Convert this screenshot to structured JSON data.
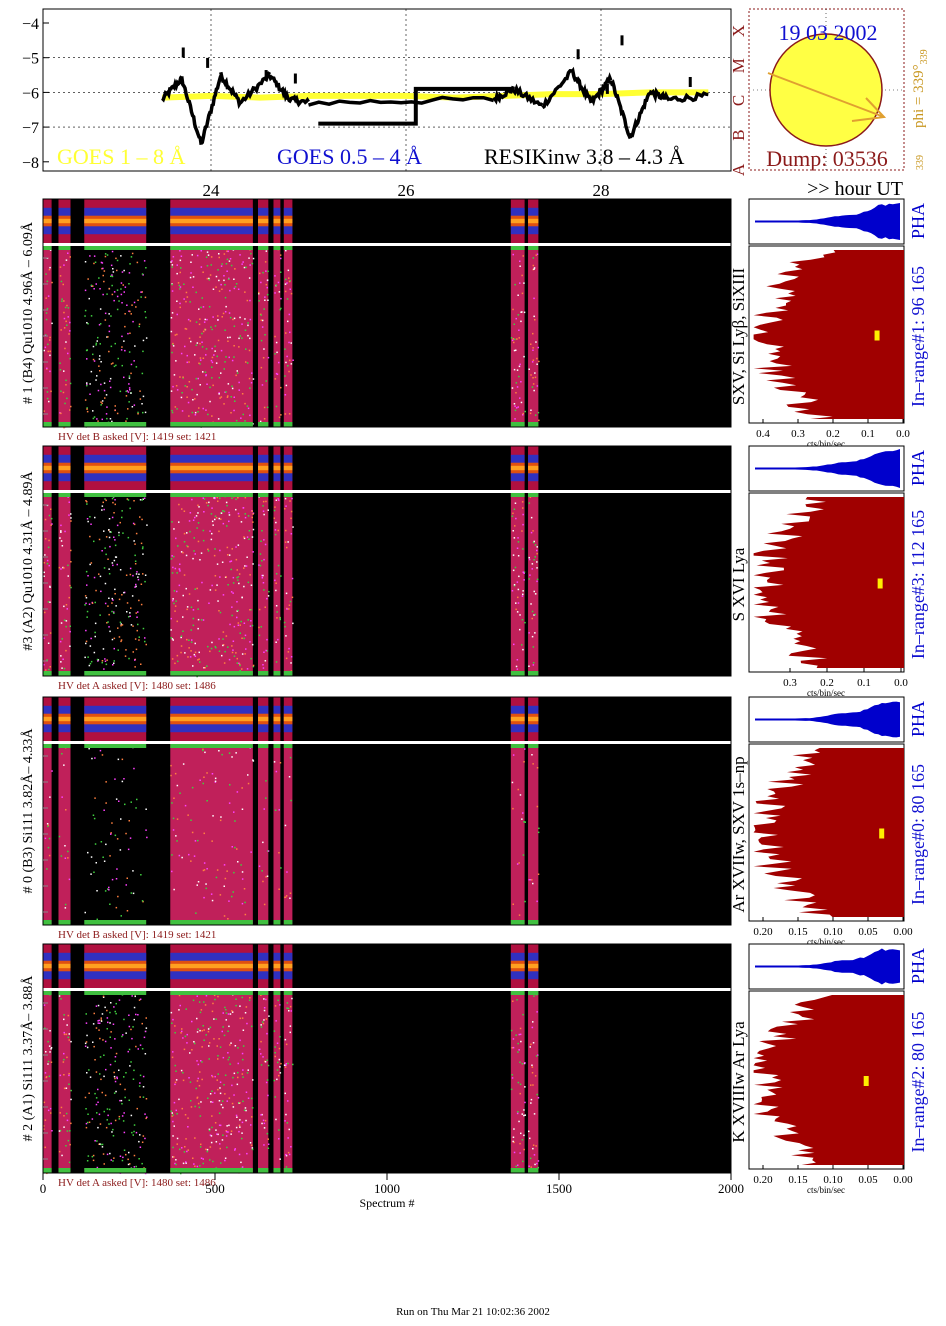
{
  "colors": {
    "goes_long": "#ffff33",
    "goes_short": "#1010d0",
    "resik": "#000000",
    "flare_class": "#8b1a1a",
    "date": "#1010d0",
    "dump": "#8b1a1a",
    "phi": "#c8961e",
    "sun_fill": "#ffff44",
    "pha": "#0000cc",
    "spectrum_fill": "#a00000",
    "marker": "#ffee00",
    "hv_label": "#8b1a1a",
    "inrange": "#1010d0"
  },
  "top": {
    "legend": {
      "goes_long": "GOES 1 – 8 Å",
      "goes_short": "GOES 0.5 – 4 Å",
      "resik": "RESIKinw 3.8 – 4.3 Å"
    },
    "y_ticks": [
      "−4",
      "−5",
      "−6",
      "−7",
      "−8"
    ],
    "hour_ticks": [
      "24",
      "26",
      "28"
    ],
    "hour_unit": ">> hour UT",
    "flare_classes": [
      "A",
      "B",
      "C",
      "M",
      "X"
    ]
  },
  "sun": {
    "date": "19 03 2002",
    "dump": "Dump: 03536",
    "phi": "phi = 339°",
    "phi_sub": "339",
    "phi_small": "339"
  },
  "detectors": [
    {
      "label": "# 1 (B4) Qu1010 4.96Å – 6.09Å",
      "lines": "SXV, Si Lyβ, SiXIII",
      "inrange": "In–range#1:  96 165",
      "pha": "PHA",
      "hv": "HV det B asked [V]:  1419  set:  1421",
      "xticks": [
        "0.4",
        "0.3",
        "0.2",
        "0.1",
        "0.0"
      ]
    },
    {
      "label": "#3 (A2) Qu1010  4.31Å – 4.89Å",
      "lines": "S XVI Lya",
      "inrange": "In–range#3:  112 165",
      "pha": "PHA",
      "hv": "HV det A asked [V]:  1480  set:  1486",
      "xticks": [
        "0.3",
        "0.2",
        "0.1",
        "0.0"
      ]
    },
    {
      "label": "# 0 (B3) Si111  3.82Å– 4.33Å",
      "lines": "Ar XVIIw,  SXV 1s–np",
      "inrange": "In–range#0:  80 165",
      "pha": "PHA",
      "hv": "HV det B asked [V]:  1419  set:  1421",
      "xticks": [
        "0.20",
        "0.15",
        "0.10",
        "0.05",
        "0.00"
      ]
    },
    {
      "label": "# 2 (A1) Si111  3.37Å– 3.88Å",
      "lines": "K XVIIIw  Ar Lya",
      "inrange": "In–range#2:  80 165",
      "pha": "PHA",
      "hv": "HV det A asked [V]:  1480  set:  1486",
      "xticks": [
        "0.20",
        "0.15",
        "0.10",
        "0.05",
        "0.00"
      ]
    }
  ],
  "xaxis": {
    "ticks": [
      "0",
      "500",
      "1000",
      "1500",
      "2000"
    ],
    "label": "Spectrum #",
    "units": "cts/bin/sec"
  },
  "footer": "Run on Thu Mar 21 10:02:36 2002",
  "chart_data": [
    {
      "type": "line",
      "ylabel": "",
      "ylim": [
        -8,
        -4
      ],
      "x_hours": [
        23.5,
        24,
        26,
        28,
        29.1
      ],
      "series": [
        {
          "name": "GOES 1 – 8 Å",
          "x": [
            23.5,
            24,
            24.5,
            25,
            25.5,
            26,
            26.5,
            27,
            27.5,
            28,
            28.5,
            29.1
          ],
          "values": [
            -6.15,
            -6.1,
            -6.15,
            -6.1,
            -6.1,
            -6.1,
            -6.15,
            -6.1,
            -6.05,
            -6.05,
            -6.0,
            -6.0
          ]
        },
        {
          "name": "GOES 0.5 – 4 Å",
          "x": [
            23.5,
            23.7,
            23.9,
            24.1,
            24.3,
            24.6,
            24.8,
            25,
            26.9,
            27.1,
            27.4,
            27.7,
            27.9,
            28.1,
            28.3,
            28.5,
            28.7,
            29.1
          ],
          "values": [
            -6.2,
            -5.6,
            -7.5,
            -5.5,
            -6.3,
            -5.5,
            -6.2,
            -6.3,
            -6.2,
            -5.9,
            -6.4,
            -5.4,
            -6.3,
            -5.6,
            -7.3,
            -6.0,
            -6.2,
            -6.1
          ]
        },
        {
          "name": "RESIKinw 3.8 – 4.3 Å",
          "x": [
            25.1,
            26.1,
            26.1,
            27.1
          ],
          "values": [
            -6.9,
            -6.9,
            -5.9,
            -5.9
          ]
        }
      ]
    },
    {
      "type": "heatmap",
      "xlabel": "Spectrum #",
      "xlim": [
        0,
        2000
      ],
      "active_spectrum_ranges": [
        [
          0,
          25
        ],
        [
          45,
          80
        ],
        [
          120,
          300
        ],
        [
          370,
          610
        ],
        [
          625,
          655
        ],
        [
          670,
          690
        ],
        [
          700,
          725
        ],
        [
          1360,
          1400
        ],
        [
          1410,
          1440
        ]
      ]
    }
  ]
}
